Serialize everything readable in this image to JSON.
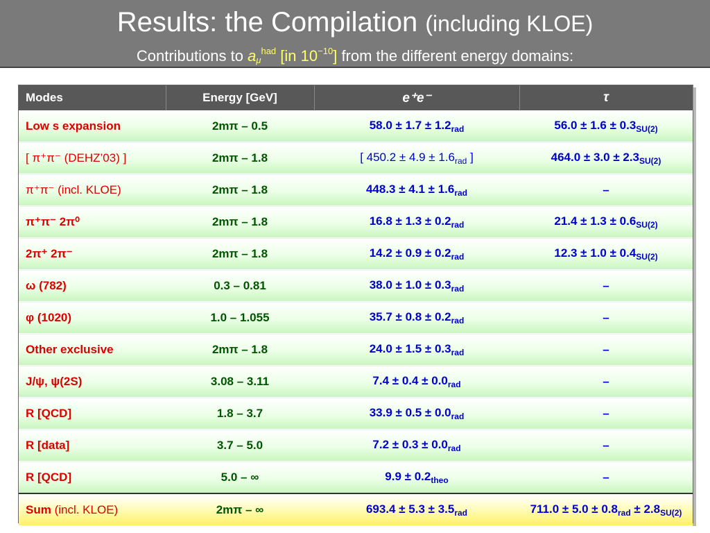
{
  "header": {
    "title_main": "Results: the Compilation",
    "title_paren": "(including KLOE)",
    "subtitle_pre": "Contributions to",
    "subtitle_a": "a",
    "subtitle_sub": "μ",
    "subtitle_sup": "had",
    "subtitle_unit_open": "[in 10",
    "subtitle_unit_exp": "−10",
    "subtitle_unit_close": "]",
    "subtitle_post": "from the different energy domains:"
  },
  "table": {
    "columns": [
      "Modes",
      "Energy [GeV]",
      "e⁺e⁻",
      "τ"
    ],
    "rows": [
      {
        "mode": "Low s expansion",
        "energy": "2mπ – 0.5",
        "ee": "58.0 ± 1.7 ± 1.2",
        "ee_sub": "rad",
        "tau": "56.0 ± 1.6 ± 0.3",
        "tau_sub": "SU(2)",
        "tau_sub2": ""
      },
      {
        "mode": "[ π⁺π⁻ (DEHZ’03) ]",
        "energy": "2mπ – 1.8",
        "ee": "[ 450.2 ± 4.9 ± 1.6",
        "ee_sub": "rad",
        "ee_tail": " ]",
        "tau": "464.0 ± 3.0 ± 2.3",
        "tau_sub": "SU(2)"
      },
      {
        "mode": "π⁺π⁻ (incl. KLOE)",
        "energy": "2mπ – 1.8",
        "ee": "448.3 ± 4.1 ± 1.6",
        "ee_sub": "rad",
        "tau": "–",
        "tau_sub": ""
      },
      {
        "mode": "π⁺π⁻ 2π⁰",
        "energy": "2mπ – 1.8",
        "ee": "16.8 ± 1.3 ± 0.2",
        "ee_sub": "rad",
        "tau": "21.4 ± 1.3 ± 0.6",
        "tau_sub": "SU(2)"
      },
      {
        "mode": "2π⁺ 2π⁻",
        "energy": "2mπ – 1.8",
        "ee": "14.2 ± 0.9 ± 0.2",
        "ee_sub": "rad",
        "tau": "12.3 ± 1.0 ± 0.4",
        "tau_sub": "SU(2)"
      },
      {
        "mode": "ω (782)",
        "energy": "0.3 – 0.81",
        "ee": "38.0 ± 1.0 ± 0.3",
        "ee_sub": "rad",
        "tau": "–",
        "tau_sub": ""
      },
      {
        "mode": "φ (1020)",
        "energy": "1.0 – 1.055",
        "ee": "35.7 ± 0.8 ± 0.2",
        "ee_sub": "rad",
        "tau": "–",
        "tau_sub": ""
      },
      {
        "mode": "Other exclusive",
        "energy": "2mπ – 1.8",
        "ee": "24.0 ± 1.5 ± 0.3",
        "ee_sub": "rad",
        "tau": "–",
        "tau_sub": ""
      },
      {
        "mode": "J/ψ, ψ(2S)",
        "energy": "3.08 – 3.11",
        "ee": "7.4 ± 0.4 ± 0.0",
        "ee_sub": "rad",
        "tau": "–",
        "tau_sub": ""
      },
      {
        "mode": "R [QCD]",
        "energy": "1.8 – 3.7",
        "ee": "33.9 ± 0.5 ± 0.0",
        "ee_sub": "rad",
        "tau": "–",
        "tau_sub": ""
      },
      {
        "mode": "R [data]",
        "energy": "3.7 – 5.0",
        "ee": "7.2 ± 0.3 ± 0.0",
        "ee_sub": "rad",
        "tau": "–",
        "tau_sub": ""
      },
      {
        "mode": "R [QCD]",
        "energy": "5.0 – ∞",
        "ee": "9.9 ± 0.2",
        "ee_sub": "theo",
        "tau": "–",
        "tau_sub": ""
      }
    ],
    "sum": {
      "mode_bold": "Sum",
      "mode_rest": " (incl. KLOE)",
      "energy": "2mπ – ∞",
      "ee": "693.4 ± 5.3 ± 3.5",
      "ee_sub": "rad",
      "tau": "711.0 ± 5.0 ± 0.8",
      "tau_sub": "rad",
      "tau_mid": " ± 2.8",
      "tau_sub2": "SU(2)"
    }
  }
}
